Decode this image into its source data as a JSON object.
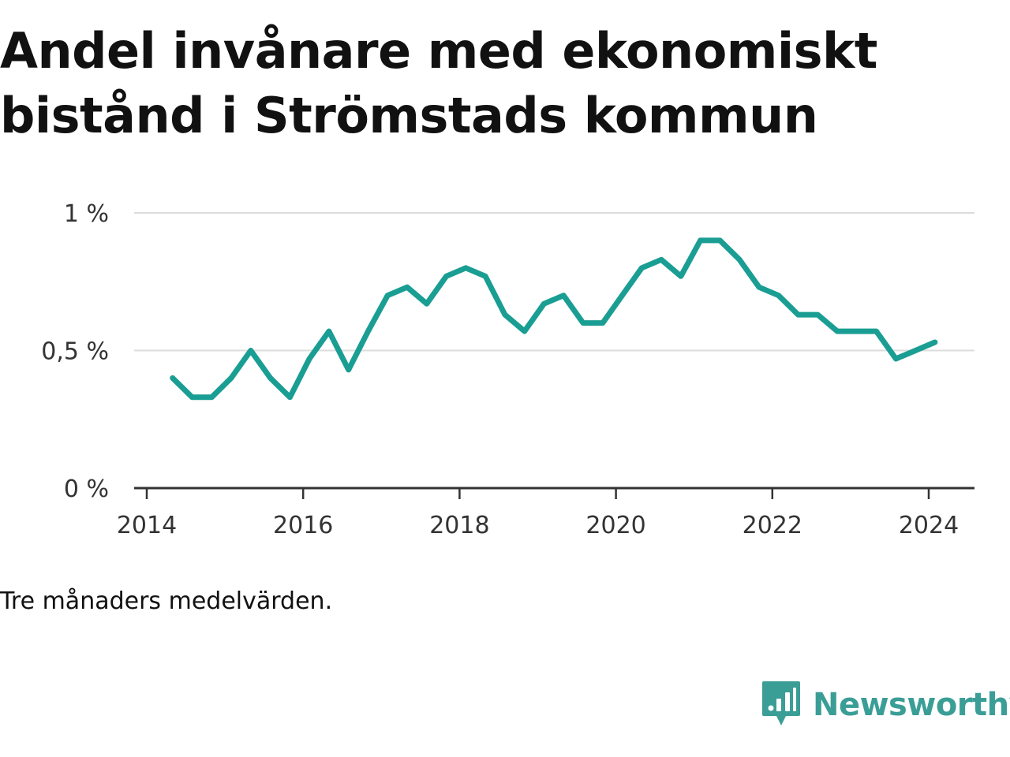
{
  "title": "Andel invånare med ekonomiskt bistånd i Strömstads kommun",
  "note": "Tre månaders medelvärden.",
  "brand": {
    "name": "Newsworthy",
    "icon": "newsworthy-logo-icon",
    "color": "#3a9e97"
  },
  "chart_data": {
    "type": "line",
    "title": "Andel invånare med ekonomiskt bistånd i Strömstads kommun",
    "xlabel": "",
    "ylabel": "",
    "xlim": [
      2014.0,
      2024.75
    ],
    "ylim": [
      0,
      1
    ],
    "x_ticks": [
      2014,
      2016,
      2018,
      2020,
      2022,
      2024
    ],
    "x_tick_labels": [
      "2014",
      "2016",
      "2018",
      "2020",
      "2022",
      "2024"
    ],
    "y_ticks": [
      0,
      0.5,
      1
    ],
    "y_tick_labels": [
      "0 %",
      "0,5 %",
      "1 %"
    ],
    "grid": true,
    "line_color": "#1a9e93",
    "series": [
      {
        "x": [
          2014.33,
          2014.58,
          2014.83,
          2015.08,
          2015.33,
          2015.58,
          2015.83,
          2016.08,
          2016.33,
          2016.58,
          2016.83,
          2017.08,
          2017.33,
          2017.58,
          2017.83,
          2018.08,
          2018.33,
          2018.58,
          2018.83,
          2019.08,
          2019.33,
          2019.58,
          2019.83,
          2020.08,
          2020.33,
          2020.58,
          2020.83,
          2021.08,
          2021.33,
          2021.58,
          2021.83,
          2022.08,
          2022.33,
          2022.58,
          2022.83,
          2023.08,
          2023.33,
          2023.58,
          2023.83,
          2024.08
        ],
        "values": [
          0.4,
          0.33,
          0.33,
          0.4,
          0.5,
          0.4,
          0.33,
          0.47,
          0.57,
          0.43,
          0.57,
          0.7,
          0.73,
          0.67,
          0.77,
          0.8,
          0.77,
          0.63,
          0.57,
          0.67,
          0.7,
          0.6,
          0.6,
          0.7,
          0.8,
          0.83,
          0.77,
          0.9,
          0.9,
          0.83,
          0.73,
          0.7,
          0.63,
          0.63,
          0.57,
          0.57,
          0.57,
          0.47,
          0.5,
          0.53
        ]
      }
    ]
  }
}
